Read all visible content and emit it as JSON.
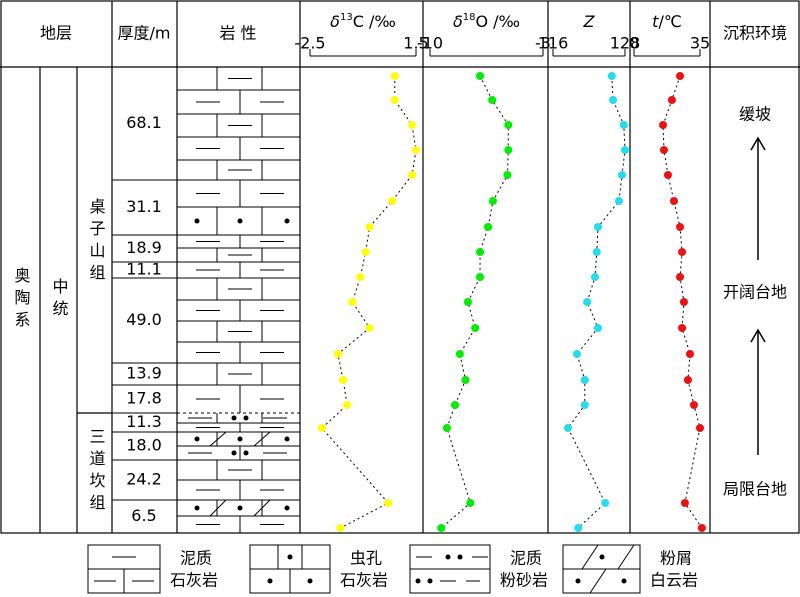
{
  "header": {
    "strata": "地层",
    "thickness": "厚度/m",
    "lithology": "岩 性",
    "environment": "沉积环境"
  },
  "strata": {
    "system": "奥陶系",
    "series": "中统",
    "formations": [
      "桌子山组",
      "三道坎组"
    ]
  },
  "thickness": [
    "68.1",
    "31.1",
    "18.9",
    "11.1",
    "49.0",
    "13.9",
    "17.8",
    "11.3",
    "18.0",
    "24.2",
    "6.5"
  ],
  "curves": [
    {
      "title": [
        "δ",
        "13",
        "C /‰"
      ],
      "xlim": [
        -2.5,
        1.5
      ],
      "xticks": [
        -2.5,
        1.5
      ],
      "color": "#ffff00",
      "values": [
        0.7,
        0.7,
        1.35,
        1.5,
        1.35,
        0.6,
        -0.25,
        -0.4,
        -0.6,
        -0.9,
        -0.25,
        -1.45,
        -1.25,
        -1.1,
        -2.05,
        0.45,
        -1.35
      ]
    },
    {
      "title": [
        "δ",
        "18",
        "O /‰"
      ],
      "xlim": [
        -10,
        -3
      ],
      "xticks": [
        -10,
        -3
      ],
      "color": "#00ee00",
      "values": [
        -6.9,
        -6.15,
        -5.15,
        -5.15,
        -5.2,
        -6.1,
        -6.4,
        -6.9,
        -6.9,
        -7.65,
        -7.2,
        -8.15,
        -7.8,
        -8.45,
        -8.95,
        -7.5,
        -9.3
      ]
    },
    {
      "title": [
        "Z"
      ],
      "xlim": [
        116,
        128
      ],
      "xticks": [
        116,
        128
      ],
      "color": "#22ddee",
      "values": [
        125.8,
        126,
        127.8,
        128,
        127.5,
        127,
        123.5,
        123.3,
        123,
        121.7,
        123.5,
        120,
        121.3,
        121.3,
        118.5,
        124.7,
        120.2
      ]
    },
    {
      "title": [
        "t",
        "/℃"
      ],
      "xlim": [
        0,
        35
      ],
      "xticks": [
        0,
        35
      ],
      "color": "#ee1111",
      "values": [
        24.4,
        20.1,
        15.4,
        15.9,
        18,
        21.2,
        24.4,
        25.5,
        24.4,
        26.5,
        25.5,
        29.7,
        28.6,
        31.8,
        35,
        27,
        36
      ]
    }
  ],
  "environment": [
    "缓坡",
    "开阔台地",
    "局限台地"
  ],
  "legend": [
    [
      "泥质",
      "石灰岩"
    ],
    [
      "虫孔",
      "石灰岩"
    ],
    [
      "泥质",
      "粉砂岩"
    ],
    [
      "粉屑",
      "白云岩"
    ]
  ]
}
